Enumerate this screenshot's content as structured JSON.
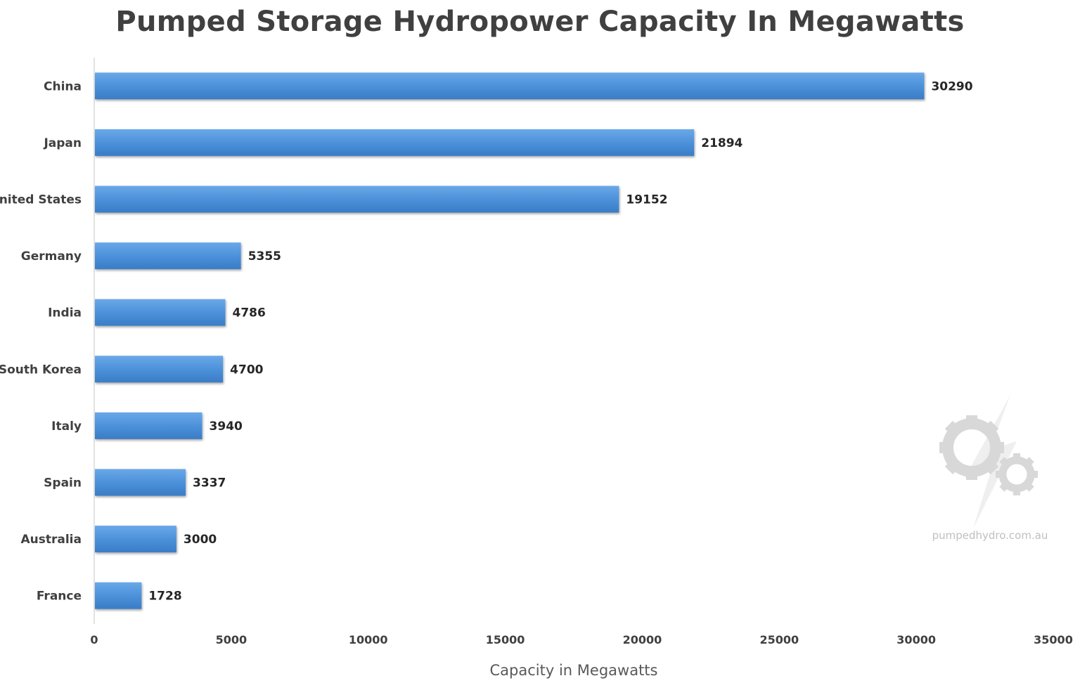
{
  "chart_data": {
    "type": "bar",
    "orientation": "horizontal",
    "title": "Pumped Storage Hydropower Capacity In Megawatts",
    "xlabel": "Capacity in Megawatts",
    "ylabel": "",
    "categories": [
      "China",
      "Japan",
      "United States",
      "Germany",
      "India",
      "South Korea",
      "Italy",
      "Spain",
      "Australia",
      "France"
    ],
    "values": [
      30290,
      21894,
      19152,
      5355,
      4786,
      4700,
      3940,
      3337,
      3000,
      1728
    ],
    "xlim": [
      0,
      35000
    ],
    "xticks": [
      0,
      5000,
      10000,
      15000,
      20000,
      25000,
      30000,
      35000
    ],
    "data_labels": true,
    "grid": false,
    "legend": "none",
    "bar_color": "#4a8fd8"
  },
  "watermark": {
    "text": "pumpedhydro.com.au",
    "icon": "gear-lightning-icon"
  }
}
